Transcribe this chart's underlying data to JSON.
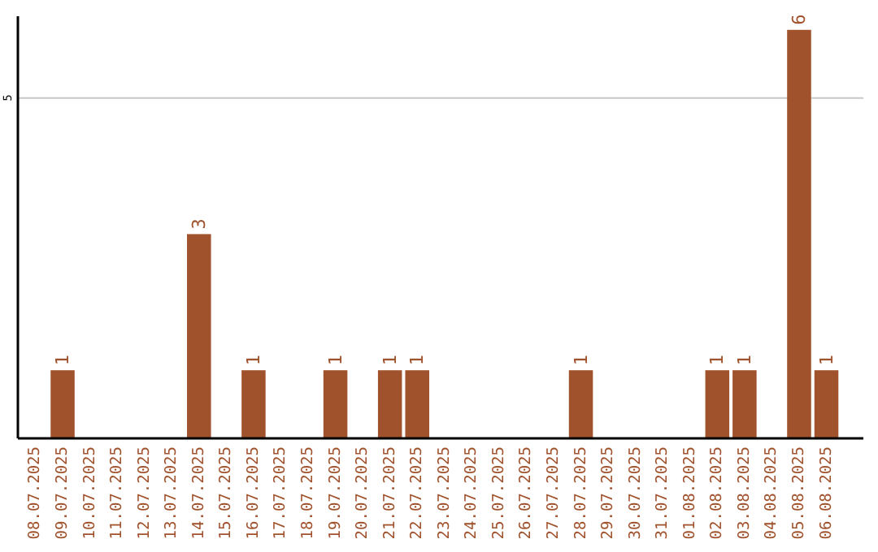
{
  "chart_data": {
    "type": "bar",
    "categories": [
      "08.07.2025",
      "09.07.2025",
      "10.07.2025",
      "11.07.2025",
      "12.07.2025",
      "13.07.2025",
      "14.07.2025",
      "15.07.2025",
      "16.07.2025",
      "17.07.2025",
      "18.07.2025",
      "19.07.2025",
      "20.07.2025",
      "21.07.2025",
      "22.07.2025",
      "23.07.2025",
      "24.07.2025",
      "25.07.2025",
      "26.07.2025",
      "27.07.2025",
      "28.07.2025",
      "29.07.2025",
      "30.07.2025",
      "31.07.2025",
      "01.08.2025",
      "02.08.2025",
      "03.08.2025",
      "04.08.2025",
      "05.08.2025",
      "06.08.2025"
    ],
    "values": [
      0,
      1,
      0,
      0,
      0,
      0,
      3,
      0,
      1,
      0,
      0,
      1,
      0,
      1,
      1,
      0,
      0,
      0,
      0,
      0,
      1,
      0,
      0,
      0,
      0,
      1,
      1,
      0,
      6,
      1
    ],
    "value_labels": [
      null,
      "1",
      null,
      null,
      null,
      null,
      "3",
      null,
      "1",
      null,
      null,
      "1",
      null,
      "1",
      "1",
      null,
      null,
      null,
      null,
      null,
      "1",
      null,
      null,
      null,
      null,
      "1",
      "1",
      null,
      "6",
      "1"
    ],
    "color": "#a0522d",
    "ylim": [
      0,
      6.2
    ],
    "yticks": [
      5
    ],
    "grid": "y"
  }
}
